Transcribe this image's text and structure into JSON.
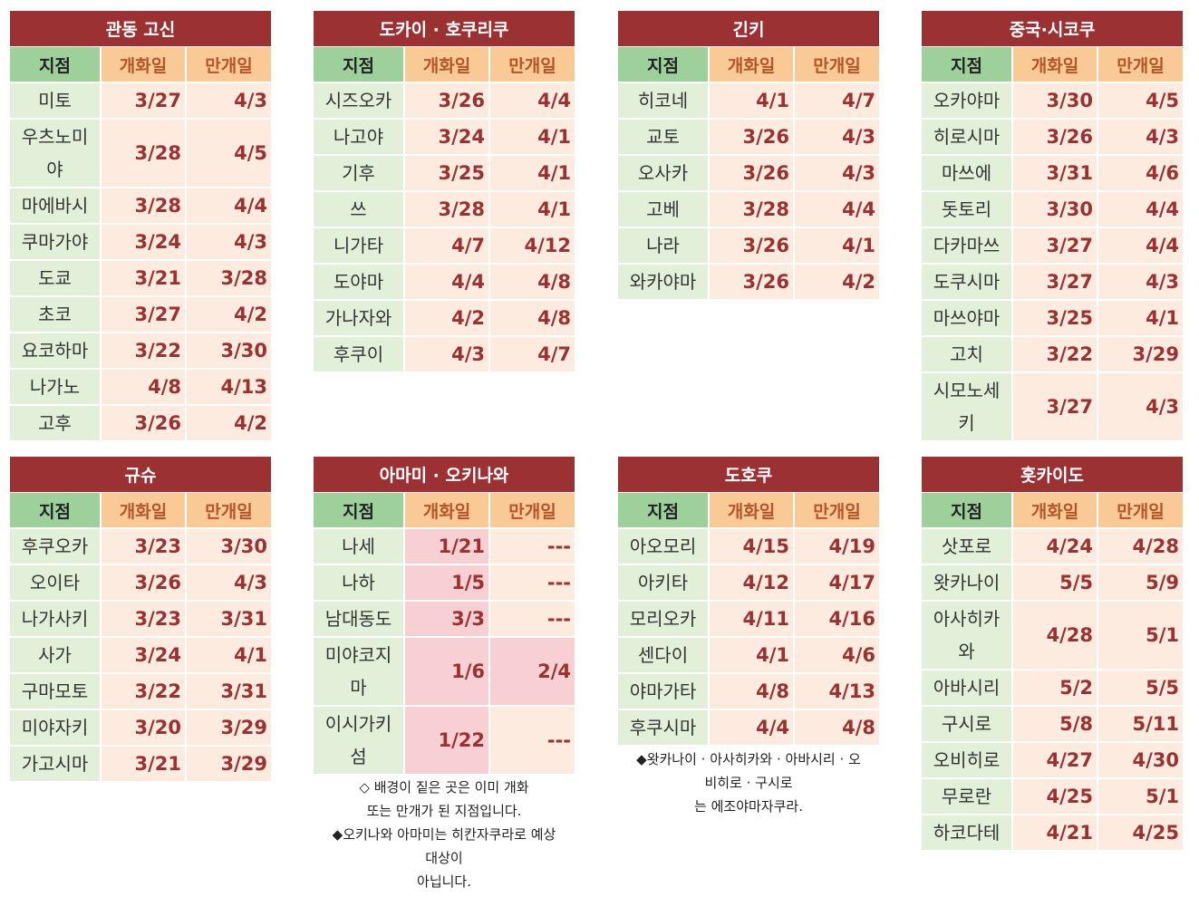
{
  "headers": {
    "name": "지점",
    "open": "개화일",
    "full": "만개일"
  },
  "regions": [
    {
      "title": "관동 고신",
      "rows": [
        {
          "name": "미토",
          "open": "3/27",
          "full": "4/3"
        },
        {
          "name": "우츠노미야",
          "open": "3/28",
          "full": "4/5"
        },
        {
          "name": "마에바시",
          "open": "3/28",
          "full": "4/4"
        },
        {
          "name": "쿠마가야",
          "open": "3/24",
          "full": "4/3"
        },
        {
          "name": "도쿄",
          "open": "3/21",
          "full": "3/28"
        },
        {
          "name": "초코",
          "open": "3/27",
          "full": "4/2"
        },
        {
          "name": "요코하마",
          "open": "3/22",
          "full": "3/30"
        },
        {
          "name": "나가노",
          "open": "4/8",
          "full": "4/13"
        },
        {
          "name": "고후",
          "open": "3/26",
          "full": "4/2"
        }
      ]
    },
    {
      "title": "도카이 · 호쿠리쿠",
      "rows": [
        {
          "name": "시즈오카",
          "open": "3/26",
          "full": "4/4"
        },
        {
          "name": "나고야",
          "open": "3/24",
          "full": "4/1"
        },
        {
          "name": "기후",
          "open": "3/25",
          "full": "4/1"
        },
        {
          "name": "쓰",
          "open": "3/28",
          "full": "4/1"
        },
        {
          "name": "니가타",
          "open": "4/7",
          "full": "4/12"
        },
        {
          "name": "도야마",
          "open": "4/4",
          "full": "4/8"
        },
        {
          "name": "가나자와",
          "open": "4/2",
          "full": "4/8"
        },
        {
          "name": "후쿠이",
          "open": "4/3",
          "full": "4/7"
        }
      ]
    },
    {
      "title": "긴키",
      "rows": [
        {
          "name": "히코네",
          "open": "4/1",
          "full": "4/7"
        },
        {
          "name": "교토",
          "open": "3/26",
          "full": "4/3"
        },
        {
          "name": "오사카",
          "open": "3/26",
          "full": "4/3"
        },
        {
          "name": "고베",
          "open": "3/28",
          "full": "4/4"
        },
        {
          "name": "나라",
          "open": "3/26",
          "full": "4/1"
        },
        {
          "name": "와카야마",
          "open": "3/26",
          "full": "4/2"
        }
      ]
    },
    {
      "title": "중국·시코쿠",
      "rows": [
        {
          "name": "오카야마",
          "open": "3/30",
          "full": "4/5"
        },
        {
          "name": "히로시마",
          "open": "3/26",
          "full": "4/3"
        },
        {
          "name": "마쓰에",
          "open": "3/31",
          "full": "4/6"
        },
        {
          "name": "돗토리",
          "open": "3/30",
          "full": "4/4"
        },
        {
          "name": "다카마쓰",
          "open": "3/27",
          "full": "4/4"
        },
        {
          "name": "도쿠시마",
          "open": "3/27",
          "full": "4/3"
        },
        {
          "name": "마쓰야마",
          "open": "3/25",
          "full": "4/1"
        },
        {
          "name": "고치",
          "open": "3/22",
          "full": "3/29"
        },
        {
          "name": "시모노세키",
          "open": "3/27",
          "full": "4/3"
        }
      ]
    },
    {
      "title": "규슈",
      "rows": [
        {
          "name": "후쿠오카",
          "open": "3/23",
          "full": "3/30"
        },
        {
          "name": "오이타",
          "open": "3/26",
          "full": "4/3"
        },
        {
          "name": "나가사키",
          "open": "3/23",
          "full": "3/31"
        },
        {
          "name": "사가",
          "open": "3/24",
          "full": "4/1"
        },
        {
          "name": "구마모토",
          "open": "3/22",
          "full": "3/31"
        },
        {
          "name": "미야자키",
          "open": "3/20",
          "full": "3/29"
        },
        {
          "name": "가고시마",
          "open": "3/21",
          "full": "3/29"
        }
      ]
    },
    {
      "title": "아마미 · 오키나와",
      "rows": [
        {
          "name": "나세",
          "open": "1/21",
          "full": "---",
          "open_done": true
        },
        {
          "name": "나하",
          "open": "1/5",
          "full": "---",
          "open_done": true
        },
        {
          "name": "남대동도",
          "open": "3/3",
          "full": "---",
          "open_done": true
        },
        {
          "name": "미야코지마",
          "open": "1/6",
          "full": "2/4",
          "open_done": true,
          "full_done": true
        },
        {
          "name": "이시가키섬",
          "open": "1/22",
          "full": "---",
          "open_done": true
        }
      ],
      "notes": [
        "◇ 배경이 짙은 곳은 이미 개화",
        "또는 만개가 된 지점입니다.",
        "◆오키나와 아마미는 히칸자쿠라로 예상",
        "대상이",
        "아닙니다."
      ]
    },
    {
      "title": "도호쿠",
      "rows": [
        {
          "name": "아오모리",
          "open": "4/15",
          "full": "4/19"
        },
        {
          "name": "아키타",
          "open": "4/12",
          "full": "4/17"
        },
        {
          "name": "모리오카",
          "open": "4/11",
          "full": "4/16"
        },
        {
          "name": "센다이",
          "open": "4/1",
          "full": "4/6"
        },
        {
          "name": "야마가타",
          "open": "4/8",
          "full": "4/13"
        },
        {
          "name": "후쿠시마",
          "open": "4/4",
          "full": "4/8"
        }
      ],
      "notes": [
        "◆왓카나이 · 아사히카와 · 아바시리 · 오",
        "비히로 · 구시로",
        "는 에조야마자쿠라."
      ]
    },
    {
      "title": "홋카이도",
      "rows": [
        {
          "name": "삿포로",
          "open": "4/24",
          "full": "4/28"
        },
        {
          "name": "왓카나이",
          "open": "5/5",
          "full": "5/9"
        },
        {
          "name": "아사히카와",
          "open": "4/28",
          "full": "5/1"
        },
        {
          "name": "아바시리",
          "open": "5/2",
          "full": "5/5"
        },
        {
          "name": "구시로",
          "open": "5/8",
          "full": "5/11"
        },
        {
          "name": "오비히로",
          "open": "4/27",
          "full": "4/30"
        },
        {
          "name": "무로란",
          "open": "4/25",
          "full": "5/1"
        },
        {
          "name": "하코다테",
          "open": "4/21",
          "full": "4/25"
        }
      ]
    }
  ]
}
